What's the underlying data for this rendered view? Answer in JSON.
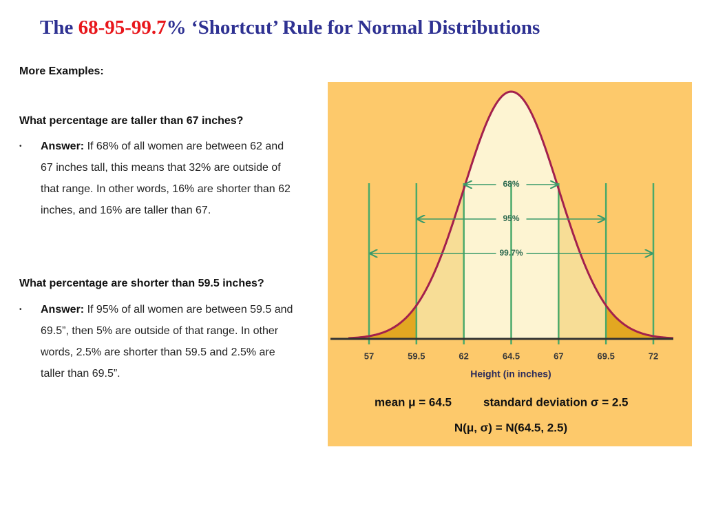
{
  "title": {
    "before": "The ",
    "highlight": "68-95-99.7",
    "after": "% ‘Shortcut’ Rule for Normal Distributions"
  },
  "heading": "More Examples:",
  "sections": [
    {
      "question": "What percentage are taller than 67 inches?",
      "answer": {
        "lead": "Answer:",
        "text": "If 68% of all women are between 62 and 67 inches tall, this means that 32% are outside of that range.  In other words, 16% are shorter than 62 inches, and 16% are taller than 67."
      }
    },
    {
      "question": "What percentage are shorter than 59.5 inches?",
      "answer": {
        "lead": "Answer:",
        "text": "If 95% of all women are between 59.5 and 69.5”, then 5% are outside of that range. In other words, 2.5% are shorter than 59.5 and 2.5% are taller than 69.5”."
      }
    }
  ],
  "figure": {
    "xticks": [
      57,
      59.5,
      62,
      64.5,
      67,
      69.5,
      72
    ],
    "spans": [
      "68%",
      "95%",
      "99.7%"
    ],
    "xlabel": "Height (in inches)",
    "mean_text": "mean μ = 64.5",
    "sd_text": "standard deviation σ = 2.5",
    "notation": "N(μ, σ) =  N(64.5, 2.5)"
  }
}
